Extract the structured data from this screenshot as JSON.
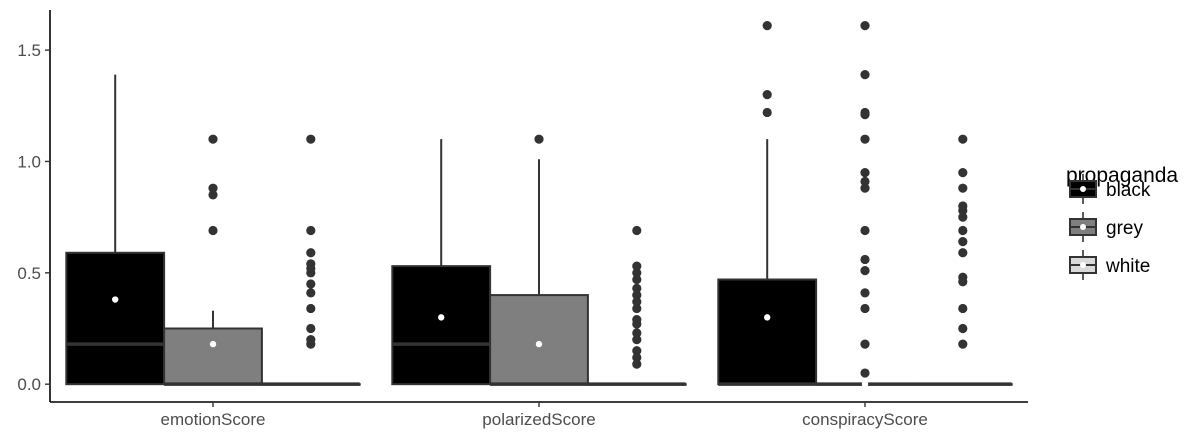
{
  "chart_data": {
    "type": "boxplot",
    "categories": [
      "emotionScore",
      "polarizedScore",
      "conspiracyScore"
    ],
    "ylim": [
      -0.08,
      1.68
    ],
    "yticks": [
      0.0,
      0.5,
      1.0,
      1.5
    ],
    "ytick_labels": [
      "0.0",
      "0.5",
      "1.0",
      "1.5"
    ],
    "grid": false,
    "legend": {
      "title": "propaganda",
      "position": "right"
    },
    "series": [
      {
        "name": "black",
        "fill": "#000000",
        "boxes": [
          {
            "q1": 0.0,
            "median": 0.18,
            "q3": 0.59,
            "whisker_low": 0.0,
            "whisker_high": 1.39,
            "mean": 0.38,
            "outliers": []
          },
          {
            "q1": 0.0,
            "median": 0.18,
            "q3": 0.53,
            "whisker_low": 0.0,
            "whisker_high": 1.1,
            "mean": 0.3,
            "outliers": []
          },
          {
            "q1": 0.0,
            "median": 0.0,
            "q3": 0.47,
            "whisker_low": 0.0,
            "whisker_high": 1.1,
            "mean": 0.3,
            "outliers": [
              1.22,
              1.3,
              1.61
            ]
          }
        ]
      },
      {
        "name": "grey",
        "fill": "#7f7f7f",
        "boxes": [
          {
            "q1": 0.0,
            "median": 0.0,
            "q3": 0.25,
            "whisker_low": 0.0,
            "whisker_high": 0.33,
            "mean": 0.18,
            "outliers": [
              0.69,
              0.85,
              0.88,
              1.1
            ]
          },
          {
            "q1": 0.0,
            "median": 0.0,
            "q3": 0.4,
            "whisker_low": 0.0,
            "whisker_high": 1.01,
            "mean": 0.18,
            "outliers": [
              1.1
            ]
          },
          {
            "q1": 0.0,
            "median": 0.0,
            "q3": 0.0,
            "whisker_low": 0.0,
            "whisker_high": 0.0,
            "mean": 0.0,
            "outliers": [
              0.05,
              0.18,
              0.34,
              0.41,
              0.51,
              0.56,
              0.69,
              0.88,
              0.91,
              0.95,
              1.1,
              1.21,
              1.22,
              1.39,
              1.61
            ]
          }
        ]
      },
      {
        "name": "white",
        "fill": "#d9d9d9",
        "boxes": [
          {
            "q1": 0.0,
            "median": 0.0,
            "q3": 0.0,
            "whisker_low": 0.0,
            "whisker_high": 0.0,
            "mean": null,
            "outliers": [
              0.18,
              0.2,
              0.25,
              0.34,
              0.41,
              0.45,
              0.5,
              0.52,
              0.54,
              0.59,
              0.69,
              1.1
            ]
          },
          {
            "q1": 0.0,
            "median": 0.0,
            "q3": 0.0,
            "whisker_low": 0.0,
            "whisker_high": 0.0,
            "mean": null,
            "outliers": [
              0.09,
              0.12,
              0.15,
              0.2,
              0.23,
              0.27,
              0.29,
              0.34,
              0.37,
              0.4,
              0.43,
              0.47,
              0.5,
              0.53,
              0.69
            ]
          },
          {
            "q1": 0.0,
            "median": 0.0,
            "q3": 0.0,
            "whisker_low": 0.0,
            "whisker_high": 0.0,
            "mean": null,
            "outliers": [
              0.18,
              0.25,
              0.34,
              0.46,
              0.48,
              0.59,
              0.64,
              0.69,
              0.75,
              0.78,
              0.8,
              0.88,
              0.95,
              1.1
            ]
          }
        ]
      }
    ]
  }
}
